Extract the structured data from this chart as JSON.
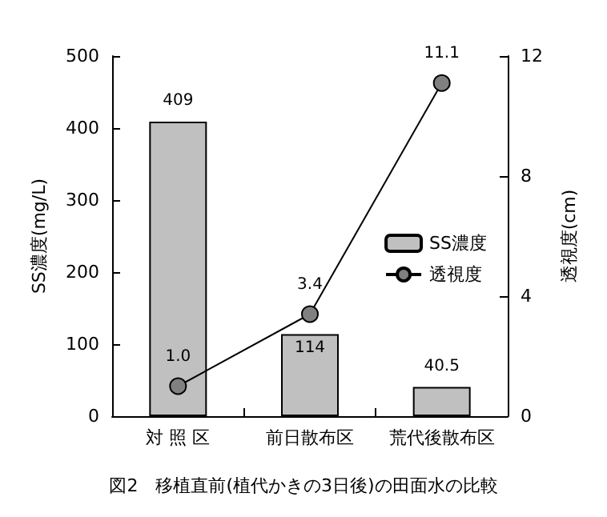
{
  "chart_data": {
    "type": "bar",
    "categories": [
      "対 照 区",
      "前日散布区",
      "荒代後散布区"
    ],
    "series": [
      {
        "name": "SS濃度",
        "color": "#c0c0c0",
        "values": [
          409,
          114,
          40.5
        ],
        "value_labels": [
          "409",
          "114",
          "40.5"
        ]
      },
      {
        "name": "透視度",
        "type": "line",
        "axis": "y2",
        "color": "#808080",
        "values": [
          1.0,
          3.4,
          11.1
        ],
        "value_labels": [
          "1.0",
          "3.4",
          "11.1"
        ]
      }
    ],
    "ylabel": "SS濃度(mg/L)",
    "y2label": "透視度(cm)",
    "ylim": [
      0,
      500
    ],
    "yticks": [
      0,
      100,
      200,
      300,
      400,
      500
    ],
    "y2lim": [
      0,
      12
    ],
    "y2ticks": [
      0,
      4,
      8,
      12
    ],
    "legend": "right",
    "grid": false,
    "marker": "circle",
    "line_style": "solid",
    "annotations": [
      "図2　移植直前(植代かきの3日後)の田面水の比較"
    ]
  }
}
